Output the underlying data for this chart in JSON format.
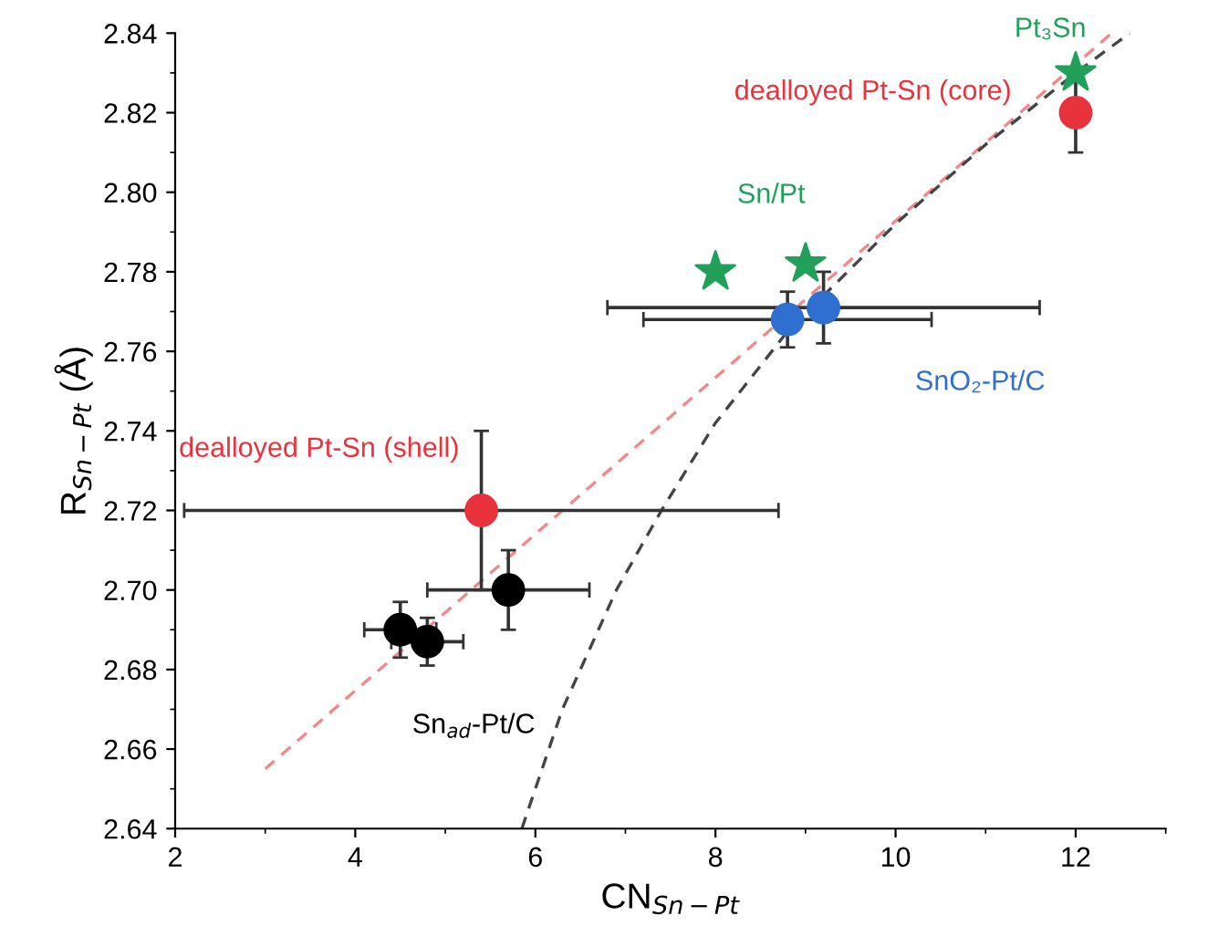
{
  "chart_data": {
    "type": "scatter",
    "xlabel": "CN$_{Sn−Pt}$",
    "ylabel": "R$_{Sn−Pt}$ (Å)",
    "xlim": [
      2,
      13
    ],
    "ylim": [
      2.64,
      2.84
    ],
    "xticks": [
      2,
      4,
      6,
      8,
      10,
      12
    ],
    "yticks": [
      2.64,
      2.66,
      2.68,
      {
        "value": 2.7,
        "label": "2.70"
      },
      2.72,
      2.74,
      2.76,
      2.78,
      {
        "value": 2.8,
        "label": "2.80"
      },
      2.82,
      2.84
    ],
    "grid": false,
    "legend": false,
    "series": [
      {
        "name": "Sn$_{ad}$-Pt/C",
        "marker": "circle",
        "color": "#000000",
        "x": [
          4.5,
          4.8,
          5.7
        ],
        "values": [
          2.69,
          2.687,
          2.7
        ],
        "errors": [
          0.007,
          0.006,
          0.01
        ],
        "xerrors": [
          0.4,
          0.4,
          0.9
        ]
      },
      {
        "name": "dealloyed Pt-Sn (shell)",
        "marker": "circle",
        "color": "#e8323c",
        "x": [
          5.4
        ],
        "values": [
          2.72
        ],
        "errors": [
          0.02
        ],
        "xerrors": [
          3.3
        ]
      },
      {
        "name": "SnO₂-Pt/C",
        "marker": "circle",
        "color": "#2f6fd0",
        "x": [
          8.8,
          9.2
        ],
        "values": [
          2.768,
          2.771
        ],
        "errors": [
          0.007,
          0.009
        ],
        "xerrors": [
          1.6,
          2.4
        ]
      },
      {
        "name": "Sn/Pt",
        "marker": "star",
        "color": "#22a05a",
        "x": [
          8.0,
          9.0
        ],
        "values": [
          2.78,
          2.782
        ]
      },
      {
        "name": "dealloyed Pt-Sn (core)",
        "marker": "circle",
        "color": "#e8323c",
        "x": [
          12.0
        ],
        "values": [
          2.82
        ],
        "errors": [
          0.01
        ]
      },
      {
        "name": "Pt₃Sn",
        "marker": "star",
        "color": "#22a05a",
        "x": [
          12.0
        ],
        "values": [
          2.83
        ]
      },
      {
        "type": "line",
        "line_style": "dashed",
        "marker": "none",
        "color": "#f08a8a",
        "x": [
          3.0,
          12.4
        ],
        "values": [
          2.655,
          2.84
        ]
      },
      {
        "type": "line",
        "line_style": "dashed",
        "marker": "none",
        "color": "#444444",
        "x": [
          5.85,
          6.3,
          6.9,
          7.4,
          8.0,
          8.8,
          10.0,
          11.0,
          12.0,
          12.6
        ],
        "values": [
          2.64,
          2.67,
          2.7,
          2.72,
          2.742,
          2.765,
          2.792,
          2.812,
          2.83,
          2.84
        ]
      }
    ]
  }
}
